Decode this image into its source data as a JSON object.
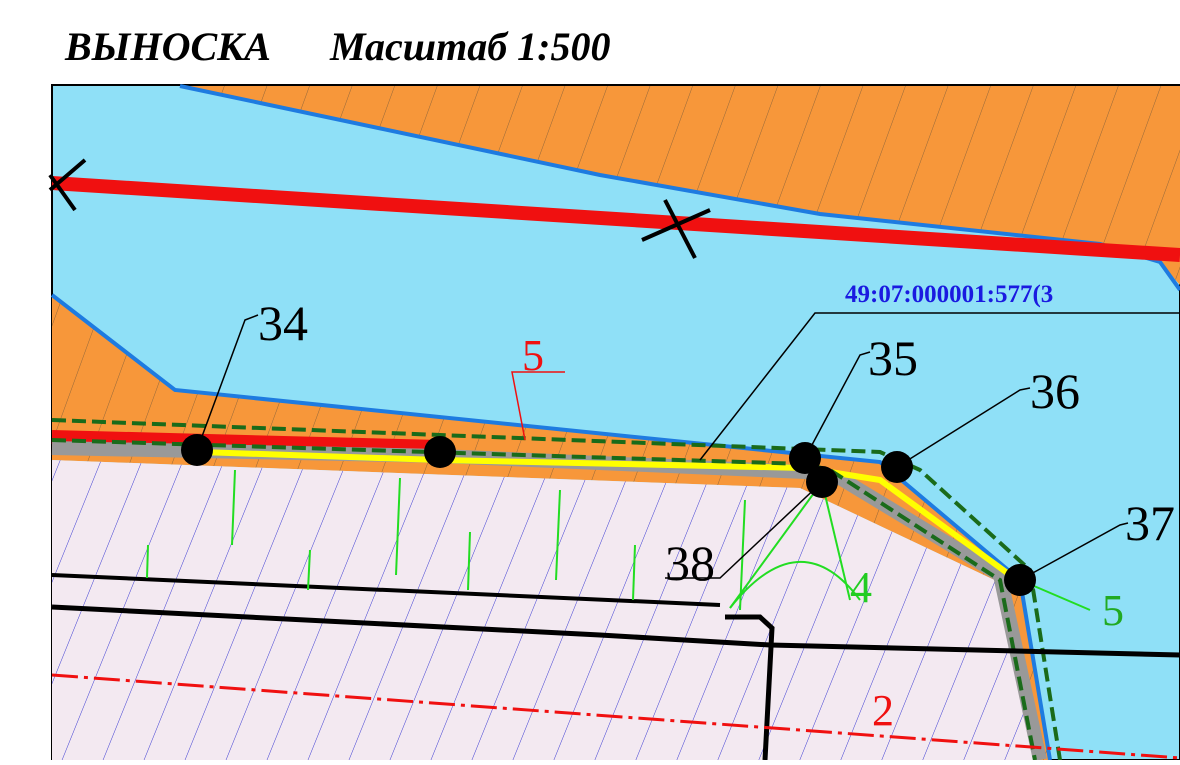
{
  "header": {
    "title": "ВЫНОСКА",
    "scale": "Масштаб 1:500"
  },
  "parcel_label": "49:07:000001:577(3",
  "points": [
    "34",
    "35",
    "36",
    "37",
    "38"
  ],
  "zone_labels": [
    "5",
    "4",
    "5",
    "2"
  ]
}
